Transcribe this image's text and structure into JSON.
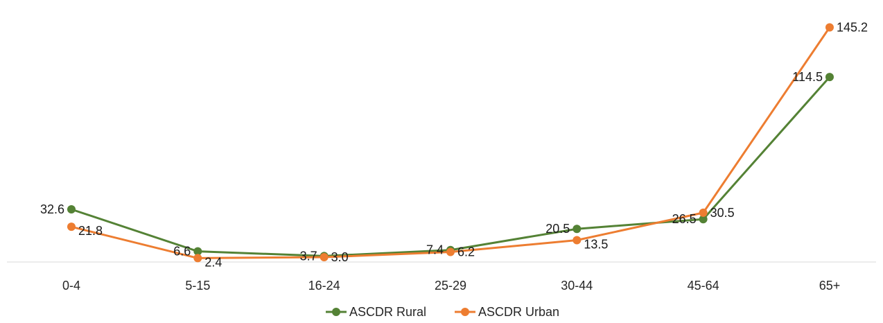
{
  "chart_data": {
    "type": "line",
    "title": "",
    "xlabel": "",
    "ylabel": "",
    "categories": [
      "0-4",
      "5-15",
      "16-24",
      "25-29",
      "30-44",
      "45-64",
      "65+"
    ],
    "ylim": [
      0,
      160
    ],
    "grid": false,
    "legend_position": "bottom",
    "series": [
      {
        "name": "ASCDR Rural",
        "color": "#548235",
        "values": [
          32.6,
          6.6,
          3.7,
          7.4,
          20.5,
          26.5,
          114.5
        ],
        "labels": [
          "32.6",
          "6.6",
          "3.7",
          "7.4",
          "20.5",
          "26.5",
          "114.5"
        ]
      },
      {
        "name": "ASCDR Urban",
        "color": "#ED7D31",
        "values": [
          21.8,
          2.4,
          3.0,
          6.2,
          13.5,
          30.5,
          145.2
        ],
        "labels": [
          "21.8",
          "2.4",
          "3.0",
          "6.2",
          "13.5",
          "30.5",
          "145.2"
        ]
      }
    ]
  }
}
